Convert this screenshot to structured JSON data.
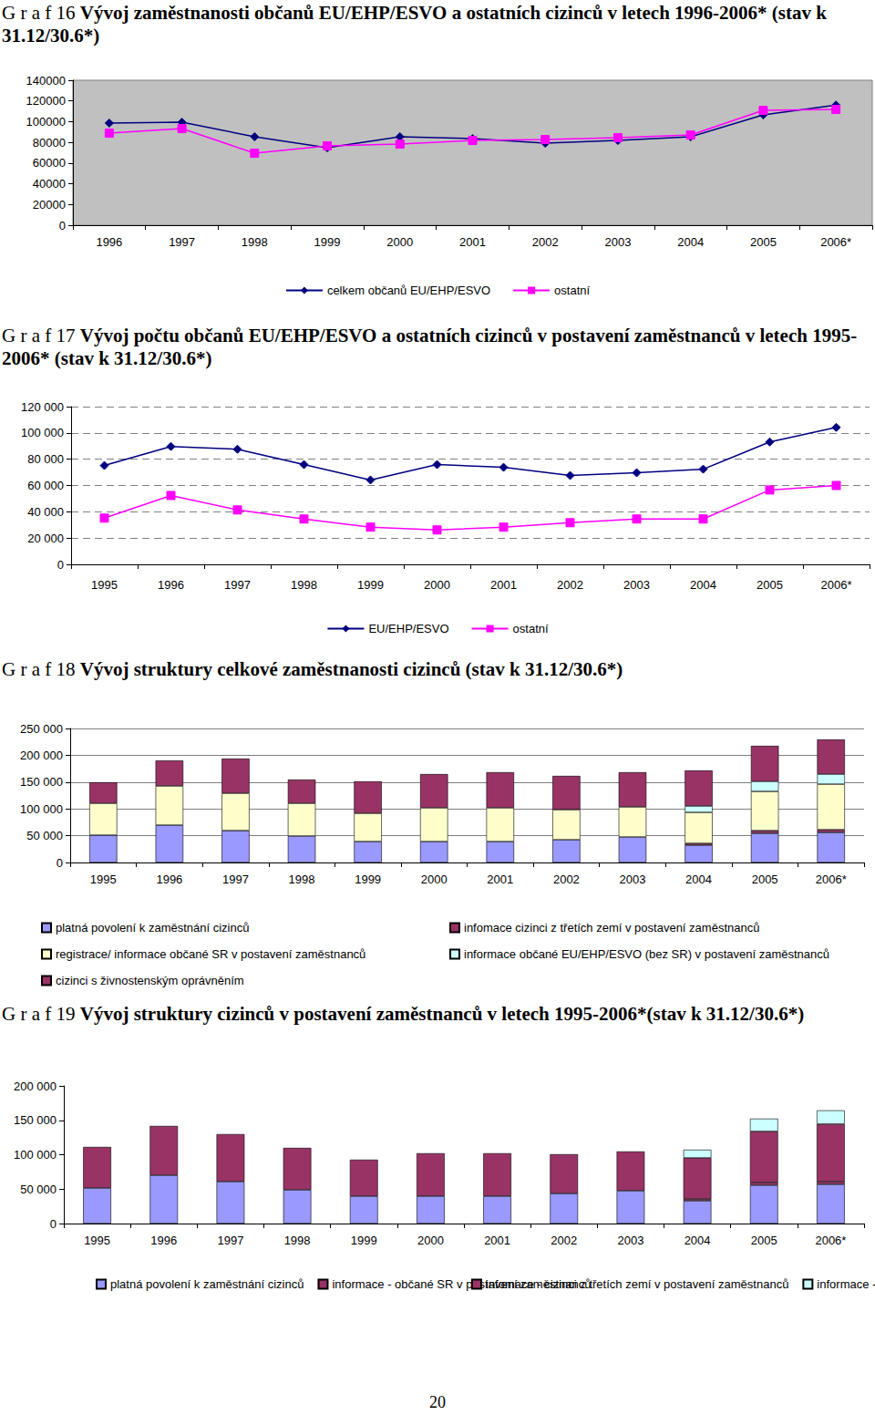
{
  "page_number": "20",
  "chart_data": [
    {
      "type": "line",
      "title": "G r a f 16 Vývoj zaměstnanosti občanů EU/EHP/ESVO a ostatních cizinců v letech 1996-2006* (stav k 31.12/30.6*)",
      "categories": [
        "1996",
        "1997",
        "1998",
        "1999",
        "2000",
        "2001",
        "2002",
        "2003",
        "2004",
        "2005",
        "2006*"
      ],
      "series": [
        {
          "name": "celkem občanů EU/EHP/ESVO",
          "color": "#000080",
          "marker": "diamond",
          "values": [
            98600,
            99400,
            85400,
            74800,
            85400,
            83600,
            79200,
            81800,
            85400,
            106500,
            116000
          ]
        },
        {
          "name": "ostatní",
          "color": "#ff00ff",
          "marker": "square",
          "values": [
            88900,
            93300,
            69500,
            76600,
            78300,
            81800,
            82700,
            84500,
            87100,
            110900,
            111800
          ]
        }
      ],
      "ylim": [
        0,
        140000
      ],
      "yticks": [
        0,
        20000,
        40000,
        60000,
        80000,
        100000,
        120000,
        140000
      ],
      "grid": false,
      "legend": "bottom"
    },
    {
      "type": "line",
      "title": "G r a f 17 Vývoj počtu občanů EU/EHP/ESVO a ostatních cizinců v postavení zaměstnanců v letech 1995-2006* (stav k 31.12/30.6*)",
      "categories": [
        "1995",
        "1996",
        "1997",
        "1998",
        "1999",
        "2000",
        "2001",
        "2002",
        "2003",
        "2004",
        "2005",
        "2006*"
      ],
      "series": [
        {
          "name": "EU/EHP/ESVO",
          "color": "#000080",
          "marker": "diamond",
          "values": [
            75200,
            89700,
            87600,
            75900,
            64200,
            75900,
            73800,
            67600,
            69700,
            72400,
            93100,
            104200
          ]
        },
        {
          "name": "ostatní",
          "color": "#ff00ff",
          "marker": "square",
          "values": [
            35200,
            52400,
            41400,
            34500,
            28300,
            26200,
            28300,
            31700,
            34500,
            34500,
            56600,
            60000
          ]
        }
      ],
      "ylim": [
        0,
        120000
      ],
      "yticks": [
        0,
        {
          "value": 20000,
          "label": "20 000"
        },
        {
          "value": 40000,
          "label": "40 000"
        },
        {
          "value": 60000,
          "label": "60 000"
        },
        {
          "value": 80000,
          "label": "80 000"
        },
        {
          "value": 100000,
          "label": "100 000"
        },
        {
          "value": 120000,
          "label": "120 000"
        }
      ],
      "grid": true,
      "legend": "bottom"
    },
    {
      "type": "bar",
      "stacked": true,
      "title": "G r a f 18 Vývoj struktury celkové zaměstnanosti cizinců (stav k 31.12/30.6*)",
      "categories": [
        "1995",
        "1996",
        "1997",
        "1998",
        "1999",
        "2000",
        "2001",
        "2002",
        "2003",
        "2004",
        "2005",
        "2006*"
      ],
      "series": [
        {
          "name": "platná povolení k zaměstnání cizinců",
          "color": "#9999ff",
          "values": [
            51000,
            69700,
            59500,
            49300,
            39100,
            39100,
            39100,
            42500,
            47600,
            32300,
            54400,
            56100
          ]
        },
        {
          "name": "infomace cizinci z třetích zemí v postavení zaměstnanců",
          "color": "#993366",
          "values": [
            null,
            null,
            null,
            null,
            null,
            null,
            null,
            null,
            null,
            3400,
            5100,
            5100
          ]
        },
        {
          "name": "registrace/ informace občané SR v postavení zaměstnanců",
          "color": "#ffffcc",
          "values": [
            59500,
            73100,
            69700,
            61200,
            52700,
            62900,
            62900,
            56100,
            56100,
            57800,
            73100,
            85000
          ]
        },
        {
          "name": "informace občané EU/EHP/ESVO (bez SR) v postavení zaměstnanců",
          "color": "#ccffff",
          "values": [
            null,
            null,
            null,
            null,
            null,
            null,
            null,
            null,
            null,
            11900,
            18700,
            18700
          ]
        },
        {
          "name": "cizinci s živnostenským oprávněním",
          "color": "#993366",
          "values": [
            39100,
            47600,
            64600,
            44200,
            59500,
            62900,
            66300,
            62900,
            64600,
            66300,
            66300,
            64600
          ]
        }
      ],
      "ylim": [
        0,
        250000
      ],
      "yticks": [
        0,
        {
          "value": 50000,
          "label": "50 000"
        },
        {
          "value": 100000,
          "label": "100 000"
        },
        {
          "value": 150000,
          "label": "150 000"
        },
        {
          "value": 200000,
          "label": "200 000"
        },
        {
          "value": 250000,
          "label": "250 000"
        }
      ],
      "grid": true,
      "legend": "bottom"
    },
    {
      "type": "bar",
      "stacked": true,
      "title": "G r a f 19 Vývoj struktury cizinců v postavení zaměstnanců v letech 1995-2006*(stav k 31.12/30.6*)",
      "categories": [
        "1995",
        "1996",
        "1997",
        "1998",
        "1999",
        "2000",
        "2001",
        "2002",
        "2003",
        "2004",
        "2005",
        "2006*"
      ],
      "series": [
        {
          "name": "platná povolení k zaměstnání cizinců",
          "color": "#9999ff",
          "values": [
            51700,
            70200,
            61000,
            49000,
            39800,
            39800,
            39800,
            43700,
            47700,
            33100,
            55700,
            57000
          ]
        },
        {
          "name": "infomace - cizinci z třetích zemí v postavení zaměstnanců",
          "color": "#993366",
          "values": [
            null,
            null,
            null,
            null,
            null,
            null,
            null,
            null,
            null,
            2650,
            4000,
            4000
          ]
        },
        {
          "name": "informace - občané SR v postavení zaměstnanců",
          "color": "#993366",
          "values": [
            59600,
            71600,
            68900,
            60900,
            53000,
            62300,
            62300,
            57000,
            57000,
            59600,
            74200,
            83500
          ]
        },
        {
          "name": "informace - občané EU/EHP/ESVO (bez SR) v postavení zaměstnanců",
          "color": "#ccffff",
          "values": [
            null,
            null,
            null,
            null,
            null,
            null,
            null,
            null,
            null,
            11900,
            18500,
            19900
          ]
        }
      ],
      "ylim": [
        0,
        200000
      ],
      "yticks": [
        0,
        {
          "value": 50000,
          "label": "50 000"
        },
        {
          "value": 100000,
          "label": "100 000"
        },
        {
          "value": 150000,
          "label": "150 000"
        },
        {
          "value": 200000,
          "label": "200 000"
        }
      ],
      "grid": false,
      "legend": "bottom"
    }
  ]
}
